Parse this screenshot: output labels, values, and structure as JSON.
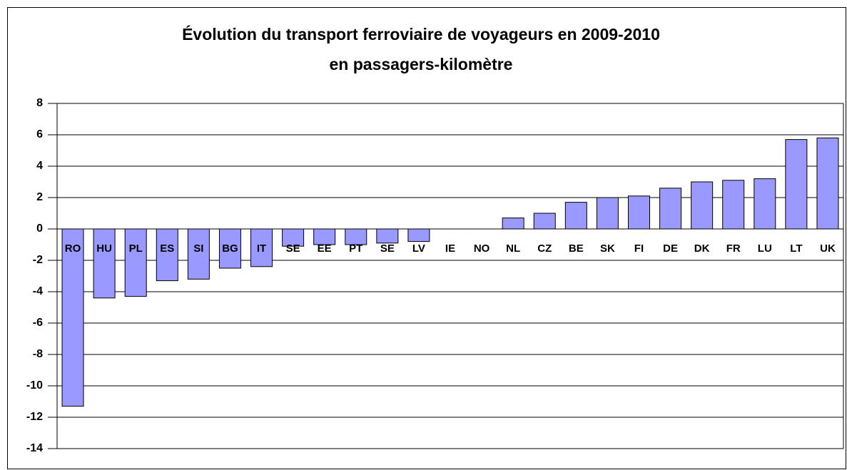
{
  "chart_data": {
    "type": "bar",
    "title": "Évolution du transport ferroviaire de voyageurs en 2009-2010",
    "subtitle": "en passagers-kilomètre",
    "categories": [
      "RO",
      "HU",
      "PL",
      "ES",
      "SI",
      "BG",
      "IT",
      "SE",
      "EE",
      "PT",
      "SE",
      "LV",
      "IE",
      "NO",
      "NL",
      "CZ",
      "BE",
      "SK",
      "FI",
      "DE",
      "DK",
      "FR",
      "LU",
      "LT",
      "UK"
    ],
    "values": [
      -11.3,
      -4.4,
      -4.3,
      -3.3,
      -3.2,
      -2.5,
      -2.4,
      -1.1,
      -1.0,
      -1.0,
      -0.9,
      -0.8,
      0,
      0,
      0.7,
      1.0,
      1.7,
      2.0,
      2.1,
      2.6,
      3.0,
      3.1,
      3.2,
      5.7,
      5.8
    ],
    "color": "#9999ff",
    "ylim": [
      -14,
      8
    ],
    "yticks": [
      -14,
      -12,
      -10,
      -8,
      -6,
      -4,
      -2,
      0,
      2,
      4,
      6,
      8
    ],
    "grid": true
  }
}
